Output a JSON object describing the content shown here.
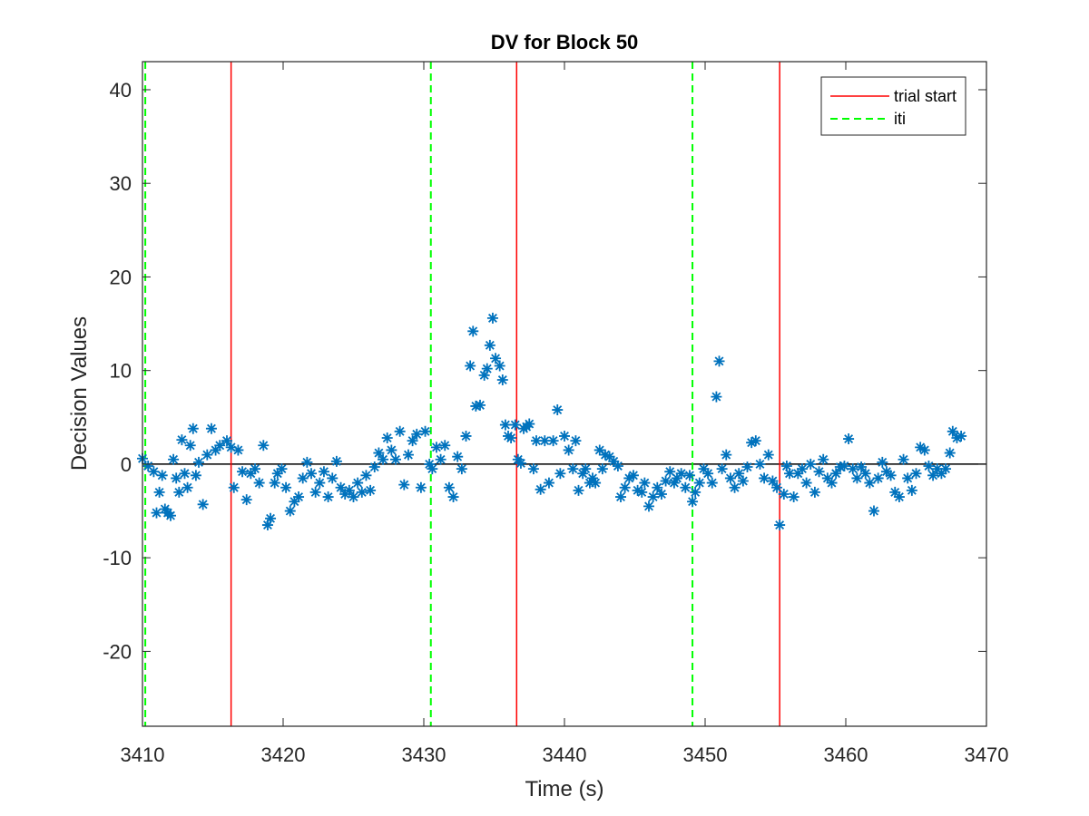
{
  "chart_data": {
    "type": "scatter",
    "title": "DV for Block 50",
    "xlabel": "Time (s)",
    "ylabel": "Decision Values",
    "xlim": [
      3410,
      3470
    ],
    "ylim": [
      -28,
      43
    ],
    "xticks": [
      3410,
      3420,
      3430,
      3440,
      3450,
      3460,
      3470
    ],
    "yticks": [
      -20,
      -10,
      0,
      10,
      20,
      30,
      40
    ],
    "grid": false,
    "legend_position": "top-right",
    "colors": {
      "points": "#0072BD",
      "trial_start": "#FF0000",
      "iti": "#00FF00",
      "zero_line": "#000000",
      "axes": "#262626"
    },
    "marker": "asterisk",
    "reference_line": {
      "y": 0
    },
    "vertical_lines": [
      {
        "series": "iti",
        "x": 3410.2
      },
      {
        "series": "trial start",
        "x": 3416.3
      },
      {
        "series": "iti",
        "x": 3430.5
      },
      {
        "series": "trial start",
        "x": 3436.6
      },
      {
        "series": "iti",
        "x": 3449.1
      },
      {
        "series": "trial start",
        "x": 3455.3
      }
    ],
    "legend": [
      {
        "label": "trial start",
        "color": "#FF0000",
        "style": "solid"
      },
      {
        "label": "iti",
        "color": "#00FF00",
        "style": "dashed"
      }
    ],
    "points": [
      [
        3410.0,
        0.6
      ],
      [
        3410.4,
        -0.2
      ],
      [
        3410.8,
        -0.8
      ],
      [
        3411.0,
        -5.2
      ],
      [
        3411.2,
        -3.0
      ],
      [
        3411.4,
        -1.2
      ],
      [
        3411.6,
        -4.8
      ],
      [
        3411.8,
        -5.2
      ],
      [
        3412.0,
        -5.5
      ],
      [
        3412.2,
        0.5
      ],
      [
        3412.4,
        -1.5
      ],
      [
        3412.6,
        -3.0
      ],
      [
        3412.8,
        2.6
      ],
      [
        3413.0,
        -1.0
      ],
      [
        3413.2,
        -2.5
      ],
      [
        3413.4,
        2.0
      ],
      [
        3413.6,
        3.8
      ],
      [
        3413.8,
        -1.2
      ],
      [
        3414.0,
        0.2
      ],
      [
        3414.3,
        -4.3
      ],
      [
        3414.6,
        1.0
      ],
      [
        3414.9,
        3.8
      ],
      [
        3415.2,
        1.5
      ],
      [
        3415.5,
        2.0
      ],
      [
        3416.0,
        2.5
      ],
      [
        3416.3,
        1.8
      ],
      [
        3416.5,
        -2.5
      ],
      [
        3416.8,
        1.5
      ],
      [
        3417.1,
        -0.8
      ],
      [
        3417.4,
        -3.8
      ],
      [
        3417.7,
        -1.0
      ],
      [
        3418.0,
        -0.5
      ],
      [
        3418.3,
        -2.0
      ],
      [
        3418.6,
        2.0
      ],
      [
        3418.9,
        -6.5
      ],
      [
        3419.1,
        -5.8
      ],
      [
        3419.4,
        -2.0
      ],
      [
        3419.6,
        -1.0
      ],
      [
        3419.9,
        -0.5
      ],
      [
        3420.2,
        -2.5
      ],
      [
        3420.5,
        -5.0
      ],
      [
        3420.8,
        -4.0
      ],
      [
        3421.1,
        -3.5
      ],
      [
        3421.4,
        -1.5
      ],
      [
        3421.7,
        0.2
      ],
      [
        3422.0,
        -1.0
      ],
      [
        3422.3,
        -3.0
      ],
      [
        3422.6,
        -2.0
      ],
      [
        3422.9,
        -0.8
      ],
      [
        3423.2,
        -3.5
      ],
      [
        3423.5,
        -1.5
      ],
      [
        3423.8,
        0.3
      ],
      [
        3424.1,
        -2.5
      ],
      [
        3424.4,
        -3.2
      ],
      [
        3424.7,
        -2.8
      ],
      [
        3425.0,
        -3.5
      ],
      [
        3425.3,
        -2.0
      ],
      [
        3425.6,
        -3.0
      ],
      [
        3425.9,
        -1.2
      ],
      [
        3426.2,
        -2.8
      ],
      [
        3426.5,
        -0.3
      ],
      [
        3426.8,
        1.2
      ],
      [
        3427.1,
        0.5
      ],
      [
        3427.4,
        2.8
      ],
      [
        3427.7,
        1.5
      ],
      [
        3428.0,
        0.5
      ],
      [
        3428.3,
        3.5
      ],
      [
        3428.6,
        -2.2
      ],
      [
        3428.9,
        1.0
      ],
      [
        3429.2,
        2.5
      ],
      [
        3429.5,
        3.2
      ],
      [
        3429.8,
        -2.5
      ],
      [
        3430.1,
        3.5
      ],
      [
        3430.4,
        0.0
      ],
      [
        3430.6,
        -0.5
      ],
      [
        3430.9,
        1.8
      ],
      [
        3431.2,
        0.5
      ],
      [
        3431.5,
        2.0
      ],
      [
        3431.8,
        -2.5
      ],
      [
        3432.1,
        -3.5
      ],
      [
        3432.4,
        0.8
      ],
      [
        3432.7,
        -0.5
      ],
      [
        3433.0,
        3.0
      ],
      [
        3433.3,
        10.5
      ],
      [
        3433.5,
        14.2
      ],
      [
        3433.7,
        6.2
      ],
      [
        3434.0,
        6.3
      ],
      [
        3434.3,
        9.5
      ],
      [
        3434.5,
        10.2
      ],
      [
        3434.7,
        12.7
      ],
      [
        3434.9,
        15.6
      ],
      [
        3435.1,
        11.3
      ],
      [
        3435.4,
        10.5
      ],
      [
        3435.6,
        9.0
      ],
      [
        3435.8,
        4.2
      ],
      [
        3436.0,
        3.0
      ],
      [
        3436.2,
        2.8
      ],
      [
        3436.5,
        4.2
      ],
      [
        3436.7,
        0.5
      ],
      [
        3436.9,
        0.1
      ],
      [
        3437.1,
        3.8
      ],
      [
        3437.3,
        4.0
      ],
      [
        3437.5,
        4.3
      ],
      [
        3437.8,
        -0.5
      ],
      [
        3438.0,
        2.5
      ],
      [
        3438.3,
        -2.7
      ],
      [
        3438.6,
        2.5
      ],
      [
        3438.9,
        -2.0
      ],
      [
        3439.2,
        2.5
      ],
      [
        3439.5,
        5.8
      ],
      [
        3439.7,
        -1.0
      ],
      [
        3440.0,
        3.0
      ],
      [
        3440.3,
        1.5
      ],
      [
        3440.6,
        -0.5
      ],
      [
        3440.8,
        2.5
      ],
      [
        3441.0,
        -2.8
      ],
      [
        3441.3,
        -1.0
      ],
      [
        3441.5,
        -0.5
      ],
      [
        3441.8,
        -2.0
      ],
      [
        3442.0,
        -1.5
      ],
      [
        3442.2,
        -2.0
      ],
      [
        3442.5,
        1.5
      ],
      [
        3442.7,
        -0.5
      ],
      [
        3442.9,
        1.0
      ],
      [
        3443.2,
        0.8
      ],
      [
        3443.5,
        0.3
      ],
      [
        3443.8,
        -0.2
      ],
      [
        3444.0,
        -3.5
      ],
      [
        3444.3,
        -2.5
      ],
      [
        3444.6,
        -1.5
      ],
      [
        3444.9,
        -1.2
      ],
      [
        3445.2,
        -2.8
      ],
      [
        3445.5,
        -3.0
      ],
      [
        3445.7,
        -2.0
      ],
      [
        3446.0,
        -4.5
      ],
      [
        3446.3,
        -3.5
      ],
      [
        3446.6,
        -2.5
      ],
      [
        3446.9,
        -3.2
      ],
      [
        3447.2,
        -1.8
      ],
      [
        3447.5,
        -0.8
      ],
      [
        3447.8,
        -2.0
      ],
      [
        3448.0,
        -1.5
      ],
      [
        3448.3,
        -1.0
      ],
      [
        3448.6,
        -2.5
      ],
      [
        3448.9,
        -1.2
      ],
      [
        3449.1,
        -4.0
      ],
      [
        3449.3,
        -3.0
      ],
      [
        3449.6,
        -2.0
      ],
      [
        3449.9,
        -0.5
      ],
      [
        3450.2,
        -1.0
      ],
      [
        3450.5,
        -2.0
      ],
      [
        3450.8,
        7.2
      ],
      [
        3451.0,
        11.0
      ],
      [
        3451.2,
        -0.5
      ],
      [
        3451.5,
        1.0
      ],
      [
        3451.8,
        -1.5
      ],
      [
        3452.1,
        -2.5
      ],
      [
        3452.4,
        -1.0
      ],
      [
        3452.7,
        -1.8
      ],
      [
        3453.0,
        -0.3
      ],
      [
        3453.3,
        2.3
      ],
      [
        3453.6,
        2.5
      ],
      [
        3453.9,
        0.0
      ],
      [
        3454.2,
        -1.5
      ],
      [
        3454.5,
        1.0
      ],
      [
        3454.8,
        -1.8
      ],
      [
        3455.1,
        -2.5
      ],
      [
        3455.3,
        -6.5
      ],
      [
        3455.6,
        -3.2
      ],
      [
        3455.8,
        -0.2
      ],
      [
        3456.0,
        -1.0
      ],
      [
        3456.3,
        -3.5
      ],
      [
        3456.6,
        -1.0
      ],
      [
        3456.9,
        -0.5
      ],
      [
        3457.2,
        -2.0
      ],
      [
        3457.5,
        0.0
      ],
      [
        3457.8,
        -3.0
      ],
      [
        3458.1,
        -0.8
      ],
      [
        3458.4,
        0.5
      ],
      [
        3458.7,
        -1.5
      ],
      [
        3459.0,
        -2.0
      ],
      [
        3459.3,
        -1.0
      ],
      [
        3459.6,
        -0.3
      ],
      [
        3459.9,
        -0.2
      ],
      [
        3460.2,
        2.7
      ],
      [
        3460.5,
        -0.5
      ],
      [
        3460.8,
        -1.5
      ],
      [
        3461.1,
        -0.3
      ],
      [
        3461.4,
        -1.0
      ],
      [
        3461.7,
        -2.0
      ],
      [
        3462.0,
        -5.0
      ],
      [
        3462.3,
        -1.5
      ],
      [
        3462.6,
        0.2
      ],
      [
        3462.9,
        -0.8
      ],
      [
        3463.2,
        -1.2
      ],
      [
        3463.5,
        -3.0
      ],
      [
        3463.8,
        -3.5
      ],
      [
        3464.1,
        0.5
      ],
      [
        3464.4,
        -1.5
      ],
      [
        3464.7,
        -2.8
      ],
      [
        3465.0,
        -1.0
      ],
      [
        3465.3,
        1.8
      ],
      [
        3465.6,
        1.5
      ],
      [
        3465.9,
        -0.2
      ],
      [
        3466.2,
        -1.2
      ],
      [
        3466.5,
        -0.5
      ],
      [
        3466.8,
        -1.0
      ],
      [
        3467.1,
        -0.5
      ],
      [
        3467.4,
        1.2
      ],
      [
        3467.6,
        3.5
      ],
      [
        3467.9,
        2.8
      ],
      [
        3468.2,
        3.0
      ]
    ]
  }
}
